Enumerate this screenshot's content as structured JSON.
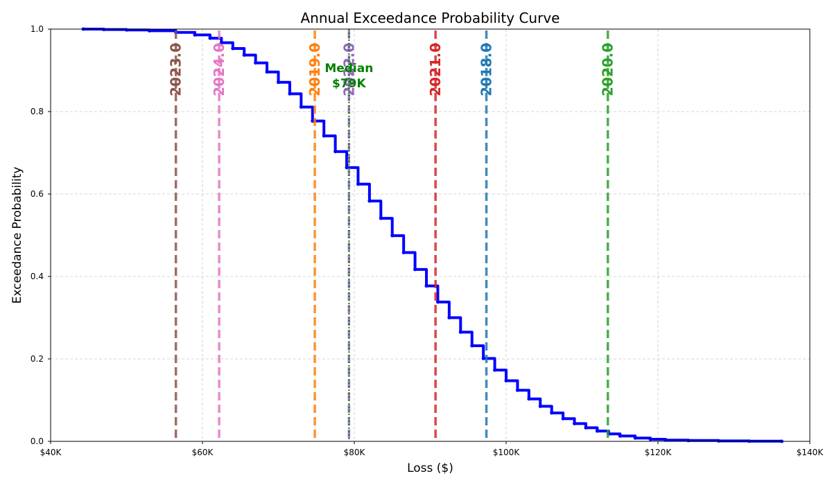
{
  "chart_data": {
    "type": "line",
    "title": "Annual Exceedance Probability Curve",
    "xlabel": "Loss ($)",
    "ylabel": "Exceedance Probability",
    "xlim": [
      40000,
      140000
    ],
    "ylim": [
      0,
      1
    ],
    "grid": true,
    "x_tick_values": [
      40000,
      60000,
      80000,
      100000,
      120000,
      140000
    ],
    "x_tick_labels": [
      "$40K",
      "$60K",
      "$80K",
      "$100K",
      "$120K",
      "$140K"
    ],
    "y_tick_values": [
      0.0,
      0.2,
      0.4,
      0.6,
      0.8,
      1.0
    ],
    "y_tick_labels": [
      "0.0",
      "0.2",
      "0.4",
      "0.6",
      "0.8",
      "1.0"
    ],
    "series": [
      {
        "color": "#0000ff",
        "step": true,
        "x": [
          44300,
          47000,
          50000,
          53000,
          56500,
          59000,
          61000,
          62500,
          64000,
          65500,
          67000,
          68500,
          70000,
          71500,
          73000,
          74500,
          76000,
          77500,
          79000,
          80500,
          82000,
          83500,
          85000,
          86500,
          88000,
          89500,
          91000,
          92500,
          94000,
          95500,
          97000,
          98500,
          100000,
          101500,
          103000,
          104500,
          106000,
          107500,
          109000,
          110500,
          112000,
          113500,
          115000,
          117000,
          119000,
          121000,
          124000,
          128000,
          132000,
          136300
        ],
        "y": [
          1.0,
          0.999,
          0.998,
          0.996,
          0.992,
          0.986,
          0.978,
          0.967,
          0.953,
          0.937,
          0.918,
          0.896,
          0.871,
          0.843,
          0.811,
          0.777,
          0.741,
          0.703,
          0.664,
          0.624,
          0.583,
          0.541,
          0.499,
          0.458,
          0.417,
          0.377,
          0.338,
          0.3,
          0.265,
          0.232,
          0.201,
          0.173,
          0.147,
          0.124,
          0.103,
          0.085,
          0.069,
          0.055,
          0.043,
          0.033,
          0.025,
          0.018,
          0.013,
          0.008,
          0.005,
          0.003,
          0.002,
          0.001,
          0.0005,
          0.0
        ]
      }
    ],
    "vertical_lines": [
      {
        "label": "2023.0",
        "x": 56500,
        "color": "#8c564b"
      },
      {
        "label": "2024.0",
        "x": 62200,
        "color": "#e377c2"
      },
      {
        "label": "2019.0",
        "x": 74800,
        "color": "#ff7f0e"
      },
      {
        "label": "2022.0",
        "x": 79300,
        "color": "#9467bd"
      },
      {
        "label": "2021.0",
        "x": 90700,
        "color": "#d62728"
      },
      {
        "label": "2018.0",
        "x": 97400,
        "color": "#1f77b4"
      },
      {
        "label": "2020.0",
        "x": 113400,
        "color": "#2ca02c"
      }
    ],
    "median": {
      "x": 79300,
      "label_line1": "Median",
      "label_line2": "$79K",
      "color": "#008000"
    }
  }
}
